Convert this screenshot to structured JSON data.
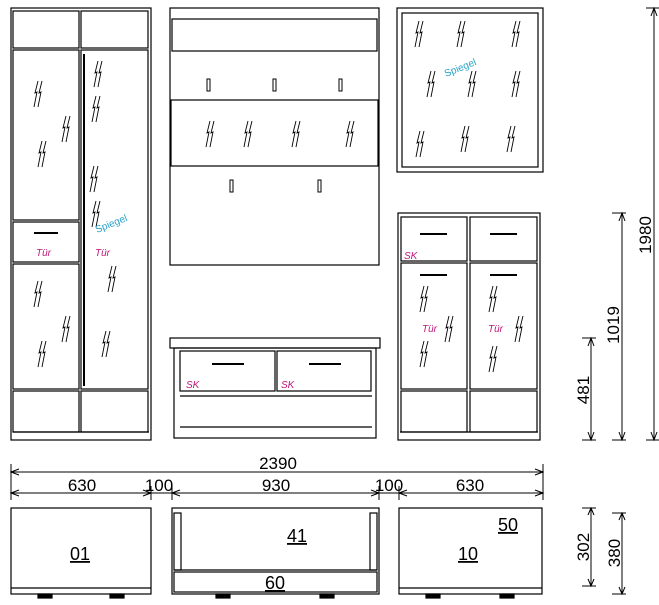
{
  "labels": {
    "door": "Tür",
    "mirror": "Spiegel",
    "drawer": "SK"
  },
  "dimensions": {
    "total_width": "2390",
    "left_width": "630",
    "gap_left": "100",
    "center_width": "930",
    "gap_right": "100",
    "right_width": "630",
    "overall_height": "1980",
    "cabinet_height": "1019",
    "bench_height": "481",
    "depth_left": "302",
    "depth_right": "380"
  },
  "plan": {
    "left_code": "01",
    "center_code": "41",
    "right_code": "10",
    "right_note": "50",
    "center_bottom_note": "60"
  },
  "colors": {
    "line": "#000000",
    "door_label": "#c0187a",
    "mirror_label": "#2aa3c8"
  }
}
